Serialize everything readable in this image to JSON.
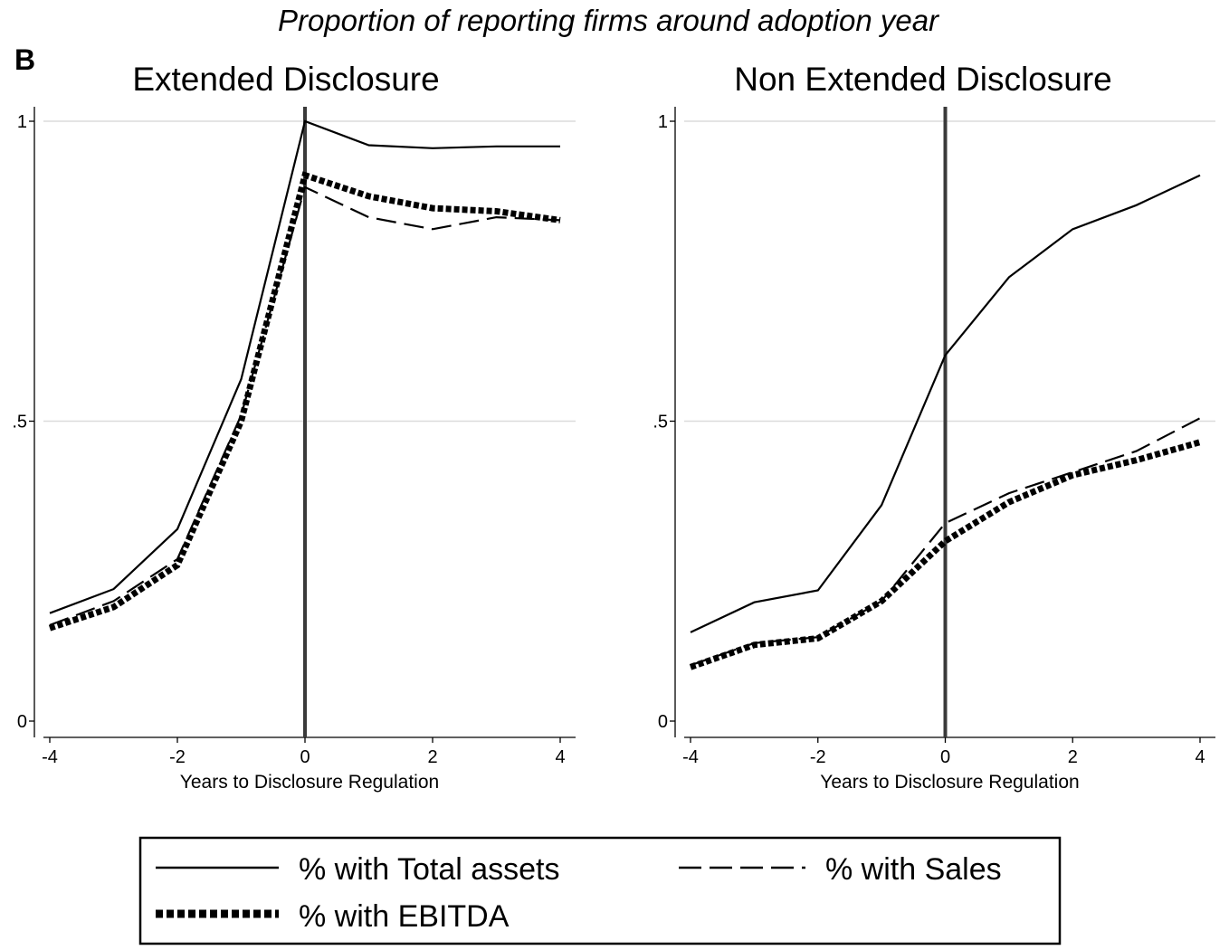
{
  "figure": {
    "suptitle": "Proportion of reporting firms around adoption year",
    "panel_letter": "B"
  },
  "legend": {
    "items": [
      {
        "label": "% with Total assets",
        "style": "solid"
      },
      {
        "label": "% with Sales",
        "style": "dashed"
      },
      {
        "label": "% with EBITDA",
        "style": "dotted-thick"
      }
    ]
  },
  "chart_data": [
    {
      "type": "line",
      "title": "Extended Disclosure",
      "xlabel": "Years to Disclosure Regulation",
      "ylabel": "",
      "xlim": [
        -4,
        4
      ],
      "ylim": [
        0,
        1
      ],
      "xticks": [
        -4,
        -2,
        0,
        2,
        4
      ],
      "xtick_labels": [
        "-4",
        "-2",
        "0",
        "2",
        "4"
      ],
      "yticks": [
        0,
        0.5,
        1
      ],
      "ytick_labels": [
        "0",
        ".5",
        "1"
      ],
      "grid": "horizontal",
      "vline_x": 0,
      "x": [
        -4,
        -3,
        -2,
        -1,
        0,
        1,
        2,
        3,
        4
      ],
      "series": [
        {
          "name": "% with Total assets",
          "style": "solid",
          "values": [
            0.18,
            0.22,
            0.32,
            0.57,
            1.0,
            0.96,
            0.955,
            0.958,
            0.958
          ]
        },
        {
          "name": "% with Sales",
          "style": "dashed",
          "values": [
            0.16,
            0.2,
            0.27,
            0.51,
            0.89,
            0.84,
            0.82,
            0.84,
            0.835
          ]
        },
        {
          "name": "% with EBITDA",
          "style": "dotted-thick",
          "values": [
            0.155,
            0.19,
            0.26,
            0.5,
            0.91,
            0.875,
            0.855,
            0.85,
            0.835
          ]
        }
      ]
    },
    {
      "type": "line",
      "title": "Non Extended Disclosure",
      "xlabel": "Years to Disclosure Regulation",
      "ylabel": "",
      "xlim": [
        -4,
        4
      ],
      "ylim": [
        0,
        1
      ],
      "xticks": [
        -4,
        -2,
        0,
        2,
        4
      ],
      "xtick_labels": [
        "-4",
        "-2",
        "0",
        "2",
        "4"
      ],
      "yticks": [
        0,
        0.5,
        1
      ],
      "ytick_labels": [
        "0",
        ".5",
        "1"
      ],
      "grid": "horizontal",
      "vline_x": 0,
      "x": [
        -4,
        -3,
        -2,
        -1,
        0,
        1,
        2,
        3,
        4
      ],
      "series": [
        {
          "name": "% with Total assets",
          "style": "solid",
          "values": [
            0.148,
            0.198,
            0.218,
            0.36,
            0.61,
            0.74,
            0.82,
            0.86,
            0.91
          ]
        },
        {
          "name": "% with Sales",
          "style": "dashed",
          "values": [
            0.093,
            0.13,
            0.14,
            0.2,
            0.33,
            0.38,
            0.415,
            0.45,
            0.505
          ]
        },
        {
          "name": "% with EBITDA",
          "style": "dotted-thick",
          "values": [
            0.09,
            0.127,
            0.138,
            0.2,
            0.3,
            0.365,
            0.41,
            0.435,
            0.465
          ]
        }
      ]
    }
  ]
}
